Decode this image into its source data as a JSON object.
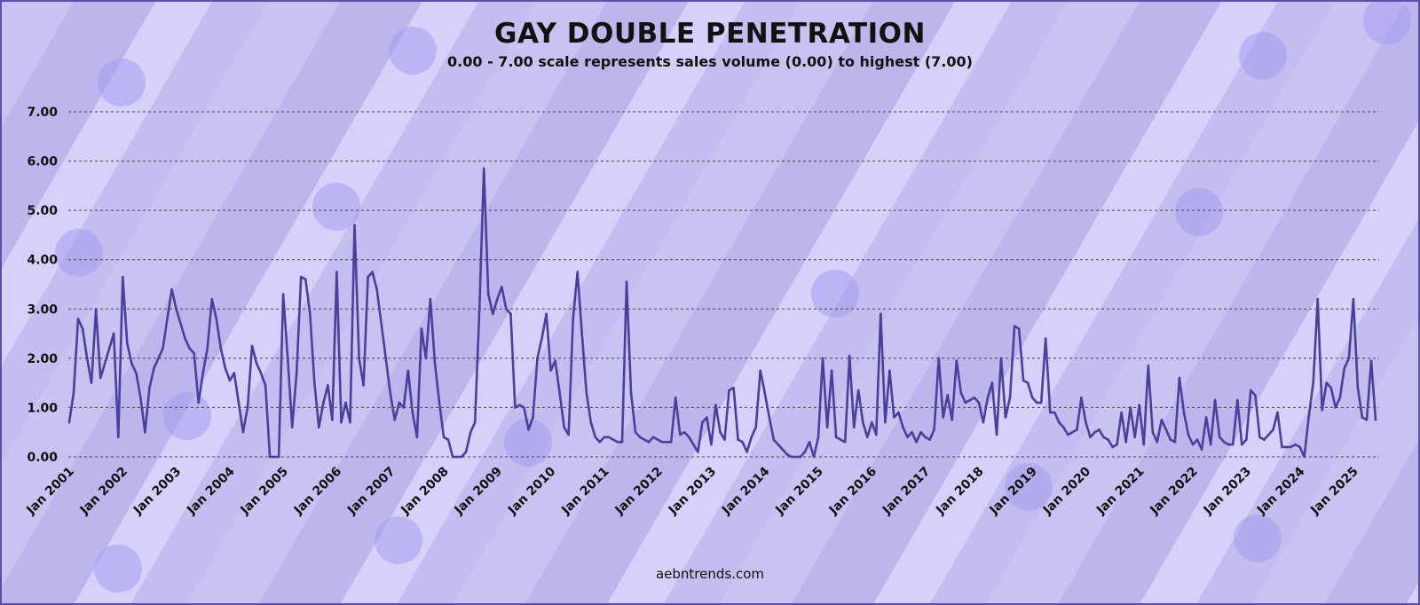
{
  "header": {
    "title": "GAY DOUBLE PENETRATION",
    "subtitle": "0.00 - 7.00 scale represents sales volume (0.00) to highest (7.00)"
  },
  "footer": {
    "source": "aebntrends.com"
  },
  "colors": {
    "line": "#4a3f9c",
    "grid": "#444444",
    "text": "#111111"
  },
  "chart_data": {
    "type": "line",
    "title": "GAY DOUBLE PENETRATION",
    "subtitle": "0.00 - 7.00 scale represents sales volume (0.00) to highest (7.00)",
    "xlabel": "",
    "ylabel": "",
    "ylim": [
      0,
      7
    ],
    "yticks": [
      "0.00",
      "1.00",
      "2.00",
      "3.00",
      "4.00",
      "5.00",
      "6.00",
      "7.00"
    ],
    "xticks": [
      "Jan 2001",
      "Jan 2002",
      "Jan 2003",
      "Jan 2004",
      "Jan 2005",
      "Jan 2006",
      "Jan 2007",
      "Jan 2008",
      "Jan 2009",
      "Jan 2010",
      "Jan 2011",
      "Jan 2012",
      "Jan 2013",
      "Jan 2014",
      "Jan 2015",
      "Jan 2016",
      "Jan 2017",
      "Jan 2018",
      "Jan 2019",
      "Jan 2020",
      "Jan 2021",
      "Jan 2022",
      "Jan 2023",
      "Jan 2024",
      "Jan 2025"
    ],
    "grid": "horizontal dashed",
    "x_start": "Jan 2001",
    "x_end": "Jan 2025",
    "series": [
      {
        "values": [
          0.7,
          1.3,
          2.8,
          2.6,
          2.0,
          1.5,
          3.0,
          1.6,
          1.9,
          2.2,
          2.5,
          0.4,
          3.65,
          2.3,
          1.9,
          1.7,
          1.2,
          0.5,
          1.4,
          1.8,
          2.0,
          2.2,
          2.8,
          3.4,
          3.0,
          2.7,
          2.4,
          2.2,
          2.1,
          1.1,
          1.7,
          2.2,
          3.2,
          2.8,
          2.2,
          1.8,
          1.55,
          1.7,
          1.1,
          0.5,
          1.0,
          2.25,
          1.9,
          1.7,
          1.45,
          0.0,
          0.0,
          0.0,
          3.3,
          2.0,
          0.6,
          1.7,
          3.65,
          3.6,
          2.9,
          1.5,
          0.6,
          1.1,
          1.45,
          0.75,
          3.75,
          0.7,
          1.1,
          0.7,
          4.7,
          2.0,
          1.45,
          3.65,
          3.75,
          3.4,
          2.7,
          2.0,
          1.3,
          0.75,
          1.1,
          1.0,
          1.75,
          0.9,
          0.4,
          2.6,
          2.0,
          3.2,
          1.9,
          1.1,
          0.4,
          0.35,
          0.0,
          0.0,
          0.0,
          0.1,
          0.5,
          0.7,
          3.0,
          5.85,
          3.3,
          2.9,
          3.2,
          3.45,
          3.0,
          2.9,
          1.0,
          1.05,
          1.0,
          0.55,
          0.8,
          2.0,
          2.4,
          2.9,
          1.75,
          1.95,
          1.3,
          0.6,
          0.45,
          2.8,
          3.75,
          2.5,
          1.3,
          0.7,
          0.4,
          0.3,
          0.4,
          0.4,
          0.35,
          0.3,
          0.3,
          3.55,
          1.3,
          0.5,
          0.4,
          0.35,
          0.3,
          0.4,
          0.35,
          0.3,
          0.3,
          0.3,
          1.2,
          0.45,
          0.5,
          0.4,
          0.25,
          0.1,
          0.7,
          0.8,
          0.25,
          1.05,
          0.5,
          0.35,
          1.35,
          1.4,
          0.35,
          0.3,
          0.1,
          0.4,
          0.6,
          1.75,
          1.3,
          0.8,
          0.35,
          0.25,
          0.15,
          0.05,
          0.0,
          0.0,
          0.0,
          0.1,
          0.3,
          0.0,
          0.4,
          2.0,
          0.6,
          1.75,
          0.4,
          0.35,
          0.3,
          2.05,
          0.6,
          1.35,
          0.7,
          0.4,
          0.7,
          0.45,
          2.9,
          0.7,
          1.75,
          0.8,
          0.9,
          0.6,
          0.4,
          0.5,
          0.3,
          0.5,
          0.4,
          0.35,
          0.55,
          2.0,
          0.8,
          1.25,
          0.75,
          1.95,
          1.3,
          1.1,
          1.15,
          1.2,
          1.1,
          0.7,
          1.2,
          1.5,
          0.45,
          2.0,
          0.8,
          1.2,
          2.65,
          2.6,
          1.55,
          1.5,
          1.2,
          1.1,
          1.1,
          2.4,
          0.9,
          0.9,
          0.7,
          0.6,
          0.45,
          0.5,
          0.55,
          1.2,
          0.7,
          0.4,
          0.5,
          0.55,
          0.4,
          0.35,
          0.2,
          0.25,
          0.9,
          0.3,
          1.0,
          0.4,
          1.05,
          0.25,
          1.85,
          0.5,
          0.3,
          0.75,
          0.55,
          0.35,
          0.3,
          1.6,
          0.9,
          0.45,
          0.25,
          0.35,
          0.15,
          0.8,
          0.25,
          1.15,
          0.4,
          0.3,
          0.25,
          0.25,
          1.15,
          0.25,
          0.35,
          1.35,
          1.25,
          0.4,
          0.35,
          0.45,
          0.55,
          0.9,
          0.2,
          0.2,
          0.2,
          0.25,
          0.2,
          0.0,
          0.8,
          1.5,
          3.2,
          0.95,
          1.5,
          1.4,
          1.0,
          1.2,
          1.8,
          2.0,
          3.2,
          1.4,
          0.8,
          0.75,
          1.95,
          0.75
        ]
      }
    ]
  }
}
